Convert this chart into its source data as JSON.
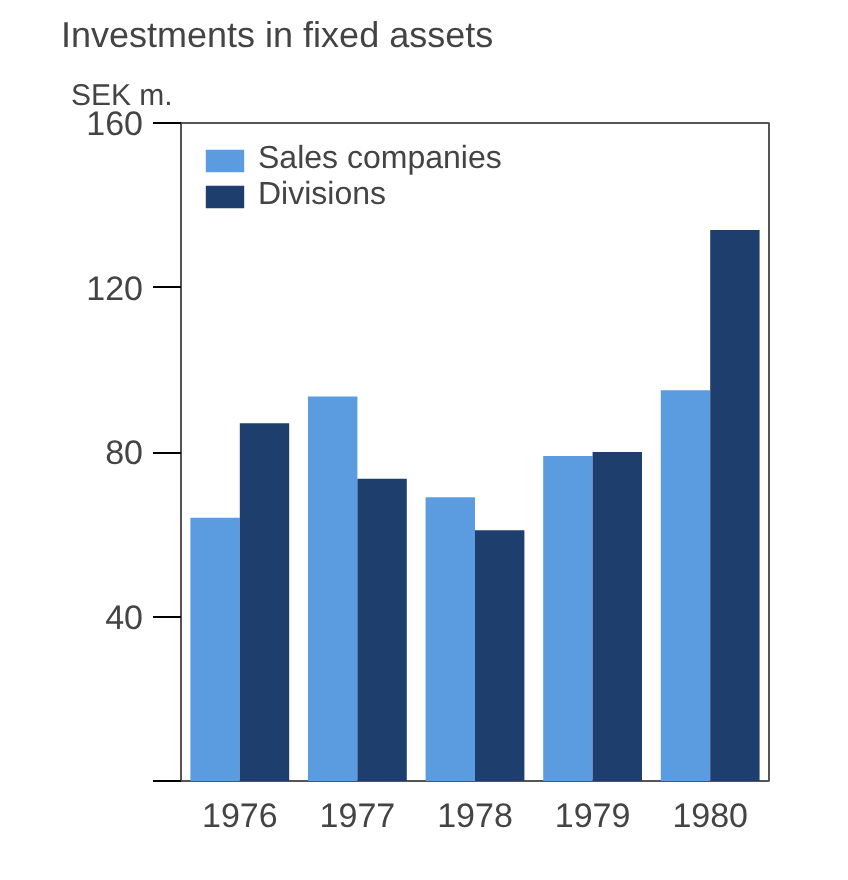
{
  "chart_data": {
    "type": "bar",
    "title": "Investments in fixed assets",
    "ylabel": "SEK m.",
    "categories": [
      "1976",
      "1977",
      "1978",
      "1979",
      "1980"
    ],
    "series": [
      {
        "name": "Sales companies",
        "color": "#5b9be0",
        "values": [
          64,
          93.5,
          69,
          79,
          95
        ]
      },
      {
        "name": "Divisions",
        "color": "#1e3f6e",
        "values": [
          87,
          73.5,
          61,
          80,
          134
        ]
      }
    ],
    "ylim": [
      0,
      160
    ],
    "yticks": [
      {
        "value": 0,
        "label": null
      },
      40,
      80,
      120,
      160
    ],
    "grid": false,
    "legend": "top left"
  }
}
